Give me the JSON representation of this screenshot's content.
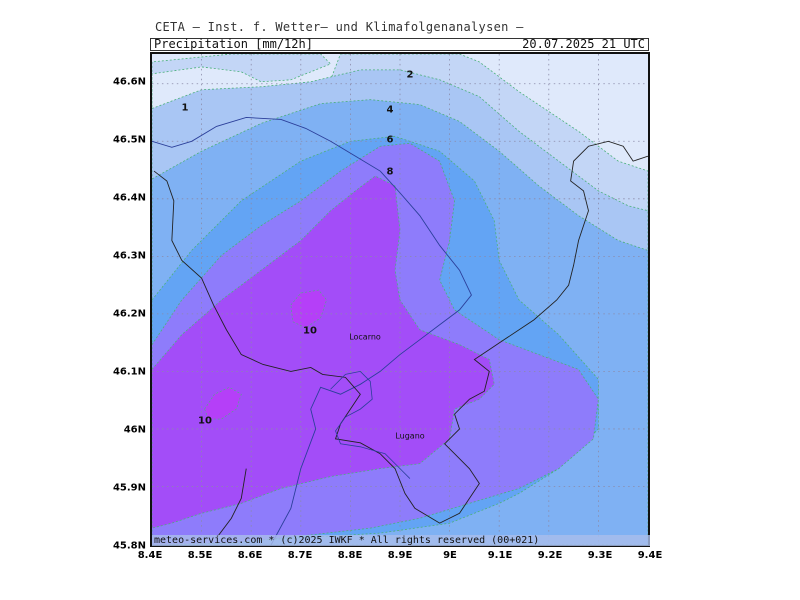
{
  "header": {
    "title": "CETA — Inst. f. Wetter— und Klimafolgenanalysen —",
    "parameter": "Precipitation [mm/12h]",
    "valid_time": "20.07.2025 21 UTC"
  },
  "footer": {
    "credit": "meteo-services.com * (c)2025 IWKF * All rights reserved (00+021)"
  },
  "axes": {
    "lat_labels": [
      "46.6N",
      "46.5N",
      "46.4N",
      "46.3N",
      "46.2N",
      "46.1N",
      "46N",
      "45.9N",
      "45.8N"
    ],
    "lon_labels": [
      "8.4E",
      "8.5E",
      "8.6E",
      "8.7E",
      "8.8E",
      "8.9E",
      "9E",
      "9.1E",
      "9.2E",
      "9.3E",
      "9.4E"
    ]
  },
  "contour_labels": [
    {
      "text": "1",
      "lon": 8.47,
      "lat": 46.555
    },
    {
      "text": "2",
      "lon": 8.92,
      "lat": 46.612
    },
    {
      "text": "4",
      "lon": 8.88,
      "lat": 46.551
    },
    {
      "text": "6",
      "lon": 8.88,
      "lat": 46.5
    },
    {
      "text": "8",
      "lon": 8.88,
      "lat": 46.445
    },
    {
      "text": "10",
      "lon": 8.72,
      "lat": 46.17
    },
    {
      "text": "10",
      "lon": 8.51,
      "lat": 46.015
    }
  ],
  "places": [
    {
      "name": "Locarno",
      "lon": 8.83,
      "lat": 46.16
    },
    {
      "name": "Lugano",
      "lon": 8.92,
      "lat": 45.99
    }
  ],
  "legend_colors": {
    "lt1": "#dfe9fb",
    "1-2": "#c3d6f6",
    "2-4": "#a9c6f4",
    "4-6": "#7fb1f3",
    "6-8": "#63a4f4",
    "8-10": "#8e7cfb",
    "10+": "#a34df8",
    "peak": "#b53ff8",
    "border": "#2b3f9a",
    "country_border": "#222222"
  }
}
